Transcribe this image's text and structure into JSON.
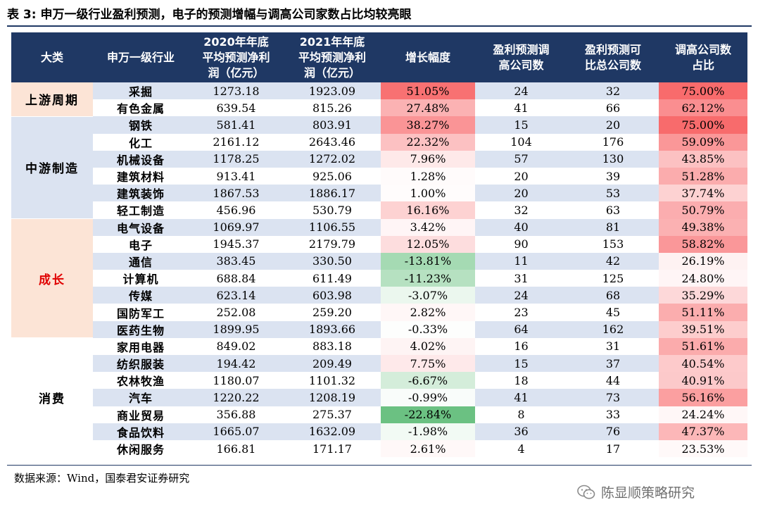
{
  "title": "表 3:  申万一级行业盈利预测，电子的预测增幅与调高公司家数占比均较亮眼",
  "headers": [
    "大类",
    "申万一级行业",
    "2020年年底平均预测净利润（亿元）",
    "2021年年底平均预测净利润（亿元）",
    "增长幅度",
    "盈利预测调高公司数",
    "盈利预测可比总公司数",
    "调高公司数占比"
  ],
  "header_lines": [
    [
      "大类"
    ],
    [
      "申万一级行业"
    ],
    [
      "2020年年底",
      "平均预测净利",
      "润（亿元）"
    ],
    [
      "2021年年底",
      "平均预测净利",
      "润（亿元）"
    ],
    [
      "增长幅度"
    ],
    [
      "盈利预测调",
      "高公司数"
    ],
    [
      "盈利预测可",
      "比总公司数"
    ],
    [
      "调高公司数",
      "占比"
    ]
  ],
  "categories": [
    {
      "name": "上游周期",
      "rows": 2,
      "style": "peach"
    },
    {
      "name": "中游制造",
      "rows": 6,
      "style": "blue"
    },
    {
      "name": "成长",
      "rows": 7,
      "style": "peach-red"
    },
    {
      "name": "消费",
      "rows": 7,
      "style": "white"
    }
  ],
  "rows": [
    {
      "industry": "采掘",
      "v2020": "1273.18",
      "v2021": "1923.09",
      "growth": "51.05%",
      "g": 51.05,
      "up": "24",
      "total": "32",
      "ratio": "75.00%",
      "r": 75.0
    },
    {
      "industry": "有色金属",
      "v2020": "639.54",
      "v2021": "815.26",
      "growth": "27.48%",
      "g": 27.48,
      "up": "41",
      "total": "66",
      "ratio": "62.12%",
      "r": 62.12
    },
    {
      "industry": "钢铁",
      "v2020": "581.41",
      "v2021": "803.91",
      "growth": "38.27%",
      "g": 38.27,
      "up": "15",
      "total": "20",
      "ratio": "75.00%",
      "r": 75.0
    },
    {
      "industry": "化工",
      "v2020": "2161.12",
      "v2021": "2643.46",
      "growth": "22.32%",
      "g": 22.32,
      "up": "104",
      "total": "176",
      "ratio": "59.09%",
      "r": 59.09
    },
    {
      "industry": "机械设备",
      "v2020": "1178.25",
      "v2021": "1272.02",
      "growth": "7.96%",
      "g": 7.96,
      "up": "57",
      "total": "130",
      "ratio": "43.85%",
      "r": 43.85
    },
    {
      "industry": "建筑材料",
      "v2020": "913.41",
      "v2021": "925.06",
      "growth": "1.28%",
      "g": 1.28,
      "up": "20",
      "total": "39",
      "ratio": "51.28%",
      "r": 51.28
    },
    {
      "industry": "建筑装饰",
      "v2020": "1867.53",
      "v2021": "1886.17",
      "growth": "1.00%",
      "g": 1.0,
      "up": "20",
      "total": "53",
      "ratio": "37.74%",
      "r": 37.74
    },
    {
      "industry": "轻工制造",
      "v2020": "456.96",
      "v2021": "530.79",
      "growth": "16.16%",
      "g": 16.16,
      "up": "32",
      "total": "63",
      "ratio": "50.79%",
      "r": 50.79
    },
    {
      "industry": "电气设备",
      "v2020": "1069.97",
      "v2021": "1106.55",
      "growth": "3.42%",
      "g": 3.42,
      "up": "40",
      "total": "81",
      "ratio": "49.38%",
      "r": 49.38
    },
    {
      "industry": "电子",
      "v2020": "1945.37",
      "v2021": "2179.79",
      "growth": "12.05%",
      "g": 12.05,
      "up": "90",
      "total": "153",
      "ratio": "58.82%",
      "r": 58.82
    },
    {
      "industry": "通信",
      "v2020": "383.45",
      "v2021": "330.50",
      "growth": "-13.81%",
      "g": -13.81,
      "up": "11",
      "total": "42",
      "ratio": "26.19%",
      "r": 26.19
    },
    {
      "industry": "计算机",
      "v2020": "688.84",
      "v2021": "611.49",
      "growth": "-11.23%",
      "g": -11.23,
      "up": "31",
      "total": "125",
      "ratio": "24.80%",
      "r": 24.8
    },
    {
      "industry": "传媒",
      "v2020": "623.14",
      "v2021": "603.98",
      "growth": "-3.07%",
      "g": -3.07,
      "up": "24",
      "total": "68",
      "ratio": "35.29%",
      "r": 35.29
    },
    {
      "industry": "国防军工",
      "v2020": "252.08",
      "v2021": "259.20",
      "growth": "2.82%",
      "g": 2.82,
      "up": "23",
      "total": "45",
      "ratio": "51.11%",
      "r": 51.11
    },
    {
      "industry": "医药生物",
      "v2020": "1899.95",
      "v2021": "1893.66",
      "growth": "-0.33%",
      "g": -0.33,
      "up": "64",
      "total": "162",
      "ratio": "39.51%",
      "r": 39.51
    },
    {
      "industry": "家用电器",
      "v2020": "849.02",
      "v2021": "883.18",
      "growth": "4.02%",
      "g": 4.02,
      "up": "16",
      "total": "31",
      "ratio": "51.61%",
      "r": 51.61
    },
    {
      "industry": "纺织服装",
      "v2020": "194.42",
      "v2021": "209.49",
      "growth": "7.75%",
      "g": 7.75,
      "up": "15",
      "total": "37",
      "ratio": "40.54%",
      "r": 40.54
    },
    {
      "industry": "农林牧渔",
      "v2020": "1180.07",
      "v2021": "1101.32",
      "growth": "-6.67%",
      "g": -6.67,
      "up": "18",
      "total": "44",
      "ratio": "40.91%",
      "r": 40.91
    },
    {
      "industry": "汽车",
      "v2020": "1220.22",
      "v2021": "1208.19",
      "growth": "-0.99%",
      "g": -0.99,
      "up": "41",
      "total": "73",
      "ratio": "56.16%",
      "r": 56.16
    },
    {
      "industry": "商业贸易",
      "v2020": "356.88",
      "v2021": "275.37",
      "growth": "-22.84%",
      "g": -22.84,
      "up": "8",
      "total": "33",
      "ratio": "24.24%",
      "r": 24.24
    },
    {
      "industry": "食品饮料",
      "v2020": "1665.07",
      "v2021": "1632.09",
      "growth": "-1.98%",
      "g": -1.98,
      "up": "36",
      "total": "76",
      "ratio": "47.37%",
      "r": 47.37
    },
    {
      "industry": "休闲服务",
      "v2020": "166.81",
      "v2021": "171.17",
      "growth": "2.61%",
      "g": 2.61,
      "up": "4",
      "total": "17",
      "ratio": "23.53%",
      "r": 23.53
    }
  ],
  "colors": {
    "header_bg": "#1f3864",
    "pos_max": "#f8696b",
    "neg_max": "#63be7b",
    "ratio_max": "#f8696b",
    "stripe": "#dbe3f1",
    "category_peach": "#fce4d6",
    "category_red_text": "#e00000"
  },
  "source": "数据来源：Wind，国泰君安证券研究",
  "watermark": {
    "icon": "wechat-icon",
    "text": "陈显顺策略研究"
  }
}
